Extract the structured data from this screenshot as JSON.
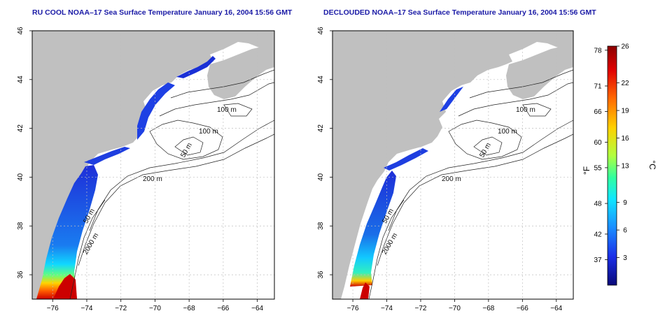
{
  "panels": [
    {
      "id": "left",
      "title": "RU COOL NOAA–17 Sea Surface Temperature January 16, 2004 15:56 GMT"
    },
    {
      "id": "right",
      "title": "DECLOUDED NOAA–17 Sea Surface Temperature January 16, 2004 15:56 GMT"
    }
  ],
  "axes": {
    "x_ticks": [
      "−76",
      "−74",
      "−72",
      "−70",
      "−68",
      "−66",
      "−64"
    ],
    "x_values": [
      -76,
      -74,
      -72,
      -70,
      -68,
      -66,
      -64
    ],
    "y_ticks": [
      "36",
      "38",
      "40",
      "42",
      "44",
      "46"
    ],
    "y_values": [
      36,
      38,
      40,
      42,
      44,
      46
    ],
    "lon_range": [
      -77.2,
      -63.0
    ],
    "lat_range": [
      35.0,
      46.0
    ]
  },
  "contours": {
    "labels": [
      "100 m",
      "100 m",
      "50 m",
      "200 m",
      "50 m",
      "2000 m"
    ]
  },
  "colorbar": {
    "f_ticks": [
      "78",
      "71",
      "66",
      "60",
      "55",
      "48",
      "42",
      "37"
    ],
    "c_ticks": [
      "26",
      "22",
      "19",
      "16",
      "13",
      "9",
      "6",
      "3"
    ],
    "f_unit": "°F",
    "c_unit": "°C",
    "range_c": [
      0,
      26
    ]
  },
  "colors": {
    "land": "#c0c0c0",
    "title": "#1a1aa6",
    "cold": "#1f2fd8",
    "mid": "#22c8ff",
    "warm": "#cc0000"
  }
}
